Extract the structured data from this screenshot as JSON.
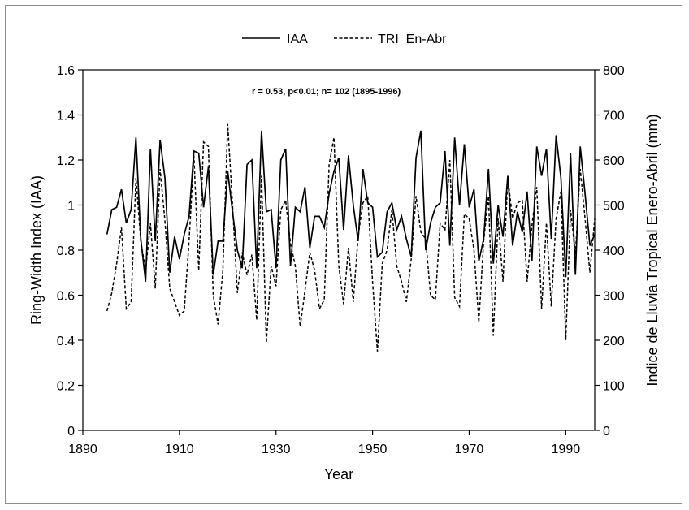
{
  "chart_data": {
    "type": "line",
    "title": "",
    "annotation": "r = 0.53, p<0.01; n= 102 (1895-1996)",
    "xlabel": "Year",
    "ylabel": "Ring-Width Index (IAA)",
    "y2label": "Indice de Lluvia Tropical Enero-Abril (mm)",
    "xlim": [
      1890,
      1996
    ],
    "xticks": [
      1890,
      1910,
      1930,
      1950,
      1970,
      1990
    ],
    "xtick_labels": [
      "1890",
      "1910",
      "1930",
      "1950",
      "1970",
      "1990"
    ],
    "ylim": [
      0,
      1.6
    ],
    "yticks": [
      0,
      0.2,
      0.4,
      0.6,
      0.8,
      1.0,
      1.2,
      1.4,
      1.6
    ],
    "ytick_labels": [
      "0",
      "0.2",
      "0.4",
      "0.6",
      "0.8",
      "1",
      "1.2",
      "1.4",
      "1.6"
    ],
    "y2lim": [
      0,
      800
    ],
    "y2ticks": [
      0,
      100,
      200,
      300,
      400,
      500,
      600,
      700,
      800
    ],
    "y2tick_labels": [
      "0",
      "100",
      "200",
      "300",
      "400",
      "500",
      "600",
      "700",
      "800"
    ],
    "legend_position": "top-center",
    "x": [
      1895,
      1896,
      1897,
      1898,
      1899,
      1900,
      1901,
      1902,
      1903,
      1904,
      1905,
      1906,
      1907,
      1908,
      1909,
      1910,
      1911,
      1912,
      1913,
      1914,
      1915,
      1916,
      1917,
      1918,
      1919,
      1920,
      1921,
      1922,
      1923,
      1924,
      1925,
      1926,
      1927,
      1928,
      1929,
      1930,
      1931,
      1932,
      1933,
      1934,
      1935,
      1936,
      1937,
      1938,
      1939,
      1940,
      1941,
      1942,
      1943,
      1944,
      1945,
      1946,
      1947,
      1948,
      1949,
      1950,
      1951,
      1952,
      1953,
      1954,
      1955,
      1956,
      1957,
      1958,
      1959,
      1960,
      1961,
      1962,
      1963,
      1964,
      1965,
      1966,
      1967,
      1968,
      1969,
      1970,
      1971,
      1972,
      1973,
      1974,
      1975,
      1976,
      1977,
      1978,
      1979,
      1980,
      1981,
      1982,
      1983,
      1984,
      1985,
      1986,
      1987,
      1988,
      1989,
      1990,
      1991,
      1992,
      1993,
      1994,
      1995,
      1996
    ],
    "series": [
      {
        "name": "IAA",
        "axis": "left",
        "style": "solid",
        "values": [
          0.87,
          0.98,
          0.99,
          1.07,
          0.92,
          0.98,
          1.3,
          0.85,
          0.66,
          1.25,
          0.84,
          1.29,
          1.12,
          0.7,
          0.86,
          0.76,
          0.87,
          0.95,
          1.24,
          1.23,
          0.99,
          1.17,
          0.69,
          0.84,
          0.84,
          1.15,
          0.97,
          0.8,
          0.72,
          1.18,
          1.2,
          0.72,
          1.33,
          0.97,
          0.98,
          0.72,
          1.2,
          1.25,
          0.73,
          0.99,
          0.97,
          1.08,
          0.81,
          0.95,
          0.95,
          0.9,
          1.05,
          1.15,
          1.21,
          0.89,
          1.22,
          1.0,
          0.84,
          1.16,
          1.01,
          0.99,
          0.77,
          0.79,
          0.97,
          1.01,
          0.89,
          0.95,
          0.85,
          0.77,
          1.21,
          1.33,
          0.8,
          0.92,
          0.99,
          1.01,
          1.24,
          0.82,
          1.3,
          1.0,
          1.27,
          0.99,
          1.07,
          0.75,
          0.85,
          1.16,
          0.74,
          1.0,
          0.86,
          1.13,
          0.82,
          0.97,
          0.88,
          1.06,
          0.75,
          1.26,
          1.13,
          1.25,
          0.85,
          1.31,
          1.12,
          0.68,
          1.23,
          0.69,
          1.26,
          1.05,
          0.82,
          0.87
        ]
      },
      {
        "name": "TRI_En-Abr",
        "axis": "right",
        "style": "dashed",
        "values": [
          265,
          305,
          370,
          450,
          270,
          285,
          560,
          420,
          355,
          460,
          315,
          580,
          465,
          315,
          285,
          255,
          265,
          420,
          610,
          355,
          640,
          630,
          300,
          235,
          355,
          680,
          500,
          305,
          395,
          345,
          390,
          245,
          565,
          195,
          365,
          320,
          490,
          510,
          415,
          365,
          230,
          310,
          395,
          355,
          270,
          290,
          590,
          650,
          365,
          280,
          405,
          285,
          430,
          505,
          520,
          330,
          175,
          370,
          400,
          490,
          365,
          330,
          285,
          380,
          520,
          440,
          425,
          300,
          290,
          460,
          445,
          600,
          295,
          275,
          480,
          470,
          400,
          240,
          420,
          520,
          210,
          470,
          330,
          560,
          470,
          505,
          510,
          330,
          455,
          540,
          270,
          460,
          275,
          470,
          530,
          200,
          490,
          390,
          580,
          470,
          350,
          470
        ]
      }
    ]
  },
  "legend": {
    "iaa_label": "IAA",
    "tri_label": "TRI_En-Abr"
  },
  "colors": {
    "line": "#000000",
    "frame": "#8c8c8c"
  }
}
